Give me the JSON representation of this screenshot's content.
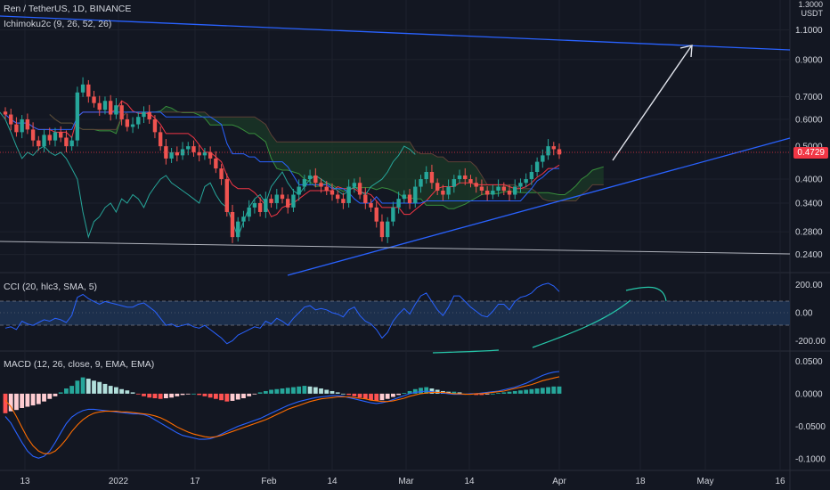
{
  "header": {
    "title": "Ren / TetherUS, 1D, BINANCE",
    "ichimoku": "Ichimoku2c (9, 26, 52, 26)",
    "cci": "CCI (20, hlc3, SMA, 5)",
    "macd": "MACD (12, 26, close, 9, EMA, EMA)"
  },
  "price_axis": {
    "top_value": "1.3000",
    "unit": "USDT"
  },
  "current_price": "0.4729",
  "colors": {
    "background": "#131722",
    "up": "#26a69a",
    "down": "#ef5350",
    "cloud": "#1b3a27",
    "trendline": "#2962ff",
    "support": "#b2b5be",
    "macd_line": "#2962ff",
    "signal_line": "#ff6d00",
    "cci_line": "#2962ff",
    "drawing_green": "#26c6a9"
  },
  "chart_data": [
    {
      "type": "candlestick",
      "title": "Ren / TetherUS, 1D, BINANCE",
      "scale": "log",
      "ylim": [
        0.22,
        1.3
      ],
      "y_ticks": [
        "0.2400",
        "0.2800",
        "0.3400",
        "0.4000",
        "0.5000",
        "0.6000",
        "0.7000",
        "0.9000",
        "1.1000"
      ],
      "x_ticks": [
        "13",
        "2022",
        "17",
        "Feb",
        "14",
        "Mar",
        "14",
        "Apr",
        "18",
        "May",
        "16"
      ],
      "last_price": 0.4729,
      "close_series": [
        0.62,
        0.58,
        0.55,
        0.6,
        0.56,
        0.52,
        0.5,
        0.54,
        0.52,
        0.55,
        0.53,
        0.5,
        0.52,
        0.72,
        0.76,
        0.7,
        0.67,
        0.64,
        0.68,
        0.62,
        0.66,
        0.6,
        0.57,
        0.58,
        0.61,
        0.63,
        0.6,
        0.55,
        0.5,
        0.46,
        0.48,
        0.47,
        0.49,
        0.5,
        0.48,
        0.47,
        0.48,
        0.46,
        0.43,
        0.4,
        0.32,
        0.27,
        0.3,
        0.31,
        0.33,
        0.34,
        0.32,
        0.35,
        0.34,
        0.36,
        0.35,
        0.33,
        0.36,
        0.38,
        0.4,
        0.41,
        0.39,
        0.38,
        0.37,
        0.36,
        0.35,
        0.34,
        0.38,
        0.39,
        0.36,
        0.34,
        0.33,
        0.3,
        0.27,
        0.3,
        0.33,
        0.35,
        0.36,
        0.34,
        0.38,
        0.4,
        0.42,
        0.39,
        0.37,
        0.36,
        0.38,
        0.4,
        0.41,
        0.4,
        0.39,
        0.38,
        0.37,
        0.36,
        0.37,
        0.38,
        0.37,
        0.36,
        0.38,
        0.39,
        0.4,
        0.42,
        0.45,
        0.47,
        0.5,
        0.49,
        0.4729
      ]
    },
    {
      "type": "line",
      "title": "CCI (20, hlc3, SMA, 5)",
      "y_ticks": [
        "200.00",
        "0.00",
        "-200.00"
      ],
      "bands": [
        100,
        -100
      ],
      "ylim": [
        -260,
        260
      ],
      "values": [
        -110,
        -100,
        -120,
        -60,
        -80,
        -90,
        -70,
        -50,
        -60,
        -40,
        -50,
        -70,
        -20,
        110,
        130,
        100,
        80,
        60,
        80,
        70,
        60,
        50,
        40,
        40,
        60,
        70,
        40,
        10,
        -40,
        -90,
        -80,
        -100,
        -90,
        -80,
        -100,
        -110,
        -90,
        -120,
        -150,
        -180,
        -220,
        -200,
        -160,
        -140,
        -120,
        -100,
        -110,
        -60,
        -80,
        -40,
        -60,
        -90,
        -40,
        0,
        40,
        50,
        20,
        30,
        20,
        0,
        -10,
        -30,
        20,
        40,
        -20,
        -60,
        -80,
        -120,
        -180,
        -140,
        -60,
        -10,
        30,
        -10,
        60,
        120,
        140,
        80,
        20,
        -20,
        40,
        120,
        120,
        80,
        40,
        10,
        -20,
        -30,
        10,
        60,
        60,
        20,
        80,
        110,
        120,
        140,
        180,
        200,
        210,
        190,
        150
      ]
    },
    {
      "type": "histogram+line",
      "title": "MACD (12, 26, close, 9, EMA, EMA)",
      "y_ticks": [
        "0.0500",
        "0.0000",
        "-0.0500",
        "-0.1000"
      ],
      "ylim": [
        -0.115,
        0.06
      ],
      "series": [
        {
          "name": "histogram",
          "values": [
            -0.03,
            -0.027,
            -0.025,
            -0.022,
            -0.02,
            -0.018,
            -0.016,
            -0.012,
            -0.008,
            -0.004,
            0.002,
            0.008,
            0.012,
            0.02,
            0.025,
            0.023,
            0.02,
            0.018,
            0.015,
            0.012,
            0.01,
            0.007,
            0.005,
            0.002,
            -0.001,
            -0.004,
            -0.006,
            -0.007,
            -0.008,
            -0.007,
            -0.006,
            -0.004,
            -0.002,
            -0.001,
            0.0,
            -0.002,
            -0.004,
            -0.006,
            -0.008,
            -0.01,
            -0.012,
            -0.011,
            -0.009,
            -0.007,
            -0.004,
            -0.001,
            0.002,
            0.004,
            0.006,
            0.007,
            0.008,
            0.009,
            0.01,
            0.011,
            0.012,
            0.011,
            0.01,
            0.008,
            0.006,
            0.004,
            0.002,
            0.0,
            -0.002,
            -0.004,
            -0.006,
            -0.008,
            -0.01,
            -0.011,
            -0.01,
            -0.008,
            -0.005,
            -0.002,
            0.001,
            0.004,
            0.007,
            0.009,
            0.01,
            0.008,
            0.006,
            0.004,
            0.003,
            0.003,
            0.002,
            0.0,
            -0.001,
            -0.002,
            -0.002,
            -0.001,
            0.0,
            0.001,
            0.002,
            0.003,
            0.004,
            0.005,
            0.006,
            0.007,
            0.008,
            0.009,
            0.01,
            0.011,
            0.011
          ]
        },
        {
          "name": "macd",
          "values": [
            -0.035,
            -0.045,
            -0.06,
            -0.075,
            -0.088,
            -0.096,
            -0.099,
            -0.096,
            -0.088,
            -0.075,
            -0.06,
            -0.046,
            -0.036,
            -0.03,
            -0.026,
            -0.024,
            -0.024,
            -0.025,
            -0.026,
            -0.027,
            -0.028,
            -0.029,
            -0.03,
            -0.031,
            -0.031,
            -0.032,
            -0.035,
            -0.04,
            -0.045,
            -0.05,
            -0.055,
            -0.06,
            -0.064,
            -0.066,
            -0.068,
            -0.07,
            -0.07,
            -0.069,
            -0.066,
            -0.062,
            -0.058,
            -0.054,
            -0.05,
            -0.047,
            -0.044,
            -0.041,
            -0.038,
            -0.034,
            -0.03,
            -0.026,
            -0.022,
            -0.018,
            -0.015,
            -0.012,
            -0.01,
            -0.008,
            -0.006,
            -0.005,
            -0.004,
            -0.003,
            -0.003,
            -0.004,
            -0.006,
            -0.008,
            -0.01,
            -0.012,
            -0.014,
            -0.015,
            -0.014,
            -0.012,
            -0.009,
            -0.006,
            -0.003,
            0.0,
            0.002,
            0.003,
            0.004,
            0.003,
            0.002,
            0.001,
            0.0,
            -0.001,
            -0.001,
            -0.001,
            0.0,
            0.0,
            0.001,
            0.002,
            0.003,
            0.004,
            0.006,
            0.008,
            0.01,
            0.013,
            0.016,
            0.02,
            0.024,
            0.028,
            0.031,
            0.033,
            0.034
          ]
        },
        {
          "name": "signal",
          "values": [
            -0.01,
            -0.02,
            -0.035,
            -0.052,
            -0.068,
            -0.08,
            -0.088,
            -0.092,
            -0.092,
            -0.088,
            -0.08,
            -0.07,
            -0.058,
            -0.048,
            -0.04,
            -0.034,
            -0.03,
            -0.028,
            -0.027,
            -0.027,
            -0.027,
            -0.028,
            -0.028,
            -0.029,
            -0.03,
            -0.031,
            -0.032,
            -0.034,
            -0.037,
            -0.041,
            -0.046,
            -0.051,
            -0.055,
            -0.059,
            -0.062,
            -0.064,
            -0.066,
            -0.067,
            -0.066,
            -0.064,
            -0.061,
            -0.058,
            -0.055,
            -0.052,
            -0.049,
            -0.046,
            -0.043,
            -0.04,
            -0.036,
            -0.032,
            -0.028,
            -0.024,
            -0.021,
            -0.018,
            -0.015,
            -0.012,
            -0.01,
            -0.008,
            -0.007,
            -0.006,
            -0.005,
            -0.005,
            -0.005,
            -0.006,
            -0.007,
            -0.008,
            -0.01,
            -0.011,
            -0.012,
            -0.012,
            -0.011,
            -0.009,
            -0.007,
            -0.004,
            -0.002,
            0.0,
            0.001,
            0.002,
            0.002,
            0.002,
            0.001,
            0.0,
            0.0,
            -0.001,
            -0.001,
            0.0,
            0.0,
            0.001,
            0.002,
            0.003,
            0.004,
            0.006,
            0.008,
            0.01,
            0.012,
            0.014,
            0.017,
            0.02,
            0.022,
            0.024,
            0.026
          ]
        }
      ]
    }
  ]
}
